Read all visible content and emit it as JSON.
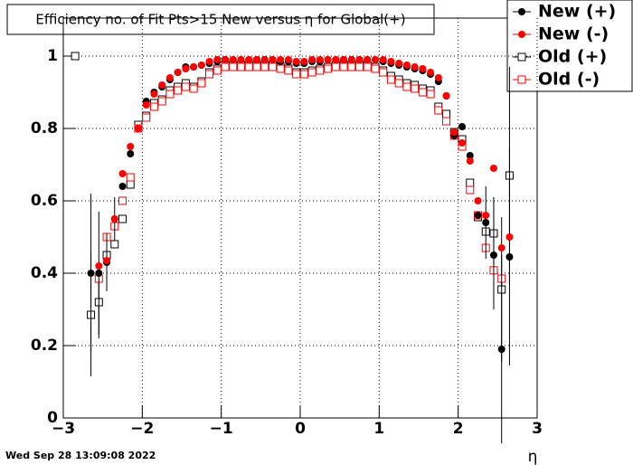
{
  "chart_data": {
    "type": "scatter",
    "title": "Efficiency no. of Fit Pts>15 New versus η for Global(+)",
    "x_label": "η",
    "footer": "Wed Sep 28 13:09:08 2022",
    "xlim": [
      -3,
      3
    ],
    "ylim": [
      0,
      1.105
    ],
    "xticks": [
      {
        "value": -3,
        "label": "−3"
      },
      {
        "value": -2,
        "label": "−2"
      },
      {
        "value": -1,
        "label": "−1"
      },
      0,
      1,
      2,
      3
    ],
    "yticks": [
      0,
      0.2,
      0.4,
      0.6,
      0.8,
      1
    ],
    "grid": true,
    "legend": "top-right",
    "x": [
      -2.85,
      -2.75,
      -2.65,
      -2.55,
      -2.45,
      -2.35,
      -2.25,
      -2.15,
      -2.05,
      -1.95,
      -1.85,
      -1.75,
      -1.65,
      -1.55,
      -1.45,
      -1.35,
      -1.25,
      -1.15,
      -1.05,
      -0.95,
      -0.85,
      -0.75,
      -0.65,
      -0.55,
      -0.45,
      -0.35,
      -0.25,
      -0.15,
      -0.05,
      0.05,
      0.15,
      0.25,
      0.35,
      0.45,
      0.55,
      0.65,
      0.75,
      0.85,
      0.95,
      1.05,
      1.15,
      1.25,
      1.35,
      1.45,
      1.55,
      1.65,
      1.75,
      1.85,
      1.95,
      2.05,
      2.15,
      2.25,
      2.35,
      2.45,
      2.55,
      2.65
    ],
    "series": [
      {
        "name": "New (+)",
        "color": "#000000",
        "marker": "circle",
        "values": [
          null,
          null,
          0.4,
          0.4,
          0.43,
          0.55,
          0.64,
          0.73,
          0.8,
          0.875,
          0.9,
          0.915,
          0.935,
          0.955,
          0.97,
          0.97,
          0.975,
          0.98,
          0.985,
          0.99,
          0.99,
          0.99,
          0.99,
          0.99,
          0.99,
          0.99,
          0.985,
          0.985,
          0.98,
          0.98,
          0.985,
          0.985,
          0.99,
          0.99,
          0.99,
          0.99,
          0.99,
          0.99,
          0.99,
          0.985,
          0.98,
          0.975,
          0.97,
          0.965,
          0.96,
          0.95,
          0.93,
          0.89,
          0.78,
          0.805,
          0.725,
          0.56,
          0.54,
          0.45,
          0.19,
          0.445
        ],
        "errors": [
          null,
          null,
          0.22,
          0.17,
          0.08,
          0.06,
          null,
          null,
          null,
          null,
          null,
          null,
          null,
          null,
          null,
          null,
          null,
          null,
          null,
          null,
          null,
          null,
          null,
          null,
          null,
          null,
          null,
          null,
          null,
          null,
          null,
          null,
          null,
          null,
          null,
          null,
          null,
          null,
          null,
          null,
          null,
          null,
          null,
          null,
          null,
          null,
          null,
          null,
          null,
          null,
          null,
          null,
          0.1,
          0.15,
          0.26,
          0.3
        ]
      },
      {
        "name": "New (-)",
        "color": "#ff0000",
        "marker": "circle",
        "values": [
          null,
          null,
          null,
          0.42,
          0.435,
          0.55,
          0.675,
          0.75,
          0.8,
          0.865,
          0.895,
          0.92,
          0.94,
          0.955,
          0.965,
          0.97,
          0.975,
          0.985,
          0.99,
          0.99,
          0.99,
          0.99,
          0.99,
          0.99,
          0.99,
          0.99,
          0.99,
          0.99,
          0.985,
          0.985,
          0.99,
          0.99,
          0.99,
          0.99,
          0.99,
          0.99,
          0.99,
          0.99,
          0.99,
          0.99,
          0.985,
          0.98,
          0.975,
          0.97,
          0.965,
          0.955,
          0.94,
          0.89,
          0.79,
          0.76,
          0.71,
          0.6,
          0.56,
          0.69,
          0.47,
          0.5
        ]
      },
      {
        "name": "Old (+)",
        "color": "#000000",
        "marker": "open-square",
        "values": [
          1.0,
          null,
          0.285,
          0.32,
          0.45,
          0.48,
          0.55,
          0.645,
          0.81,
          0.835,
          0.87,
          0.88,
          0.905,
          0.915,
          0.925,
          0.915,
          0.93,
          0.955,
          0.965,
          0.975,
          0.975,
          0.975,
          0.975,
          0.975,
          0.975,
          0.975,
          0.97,
          0.965,
          0.955,
          0.955,
          0.96,
          0.965,
          0.97,
          0.975,
          0.975,
          0.975,
          0.975,
          0.975,
          0.97,
          0.96,
          0.945,
          0.935,
          0.925,
          0.92,
          0.91,
          0.905,
          0.86,
          0.84,
          0.79,
          0.77,
          0.65,
          0.555,
          0.515,
          0.51,
          0.355,
          0.67
        ],
        "errors": [
          null,
          null,
          0.17,
          0.1,
          null,
          null,
          null,
          null,
          null,
          null,
          null,
          null,
          null,
          null,
          null,
          null,
          null,
          null,
          null,
          null,
          null,
          null,
          null,
          null,
          null,
          null,
          null,
          null,
          null,
          null,
          null,
          null,
          null,
          null,
          null,
          null,
          null,
          null,
          null,
          null,
          null,
          null,
          null,
          null,
          null,
          null,
          null,
          null,
          null,
          null,
          null,
          null,
          null,
          0.1,
          0.2,
          0.3
        ]
      },
      {
        "name": "Old (-)",
        "color": "#ff0000",
        "marker": "open-square",
        "values": [
          null,
          null,
          null,
          0.385,
          0.5,
          0.53,
          0.6,
          0.665,
          0.8,
          0.83,
          0.86,
          0.875,
          0.895,
          0.905,
          0.915,
          0.91,
          0.925,
          0.95,
          0.96,
          0.97,
          0.97,
          0.97,
          0.97,
          0.97,
          0.97,
          0.97,
          0.965,
          0.96,
          0.95,
          0.95,
          0.955,
          0.96,
          0.965,
          0.97,
          0.97,
          0.97,
          0.97,
          0.97,
          0.965,
          0.955,
          0.935,
          0.925,
          0.915,
          0.91,
          0.9,
          0.895,
          0.85,
          0.82,
          0.78,
          0.75,
          0.63,
          0.56,
          0.47,
          0.408,
          0.385,
          null
        ]
      }
    ]
  }
}
